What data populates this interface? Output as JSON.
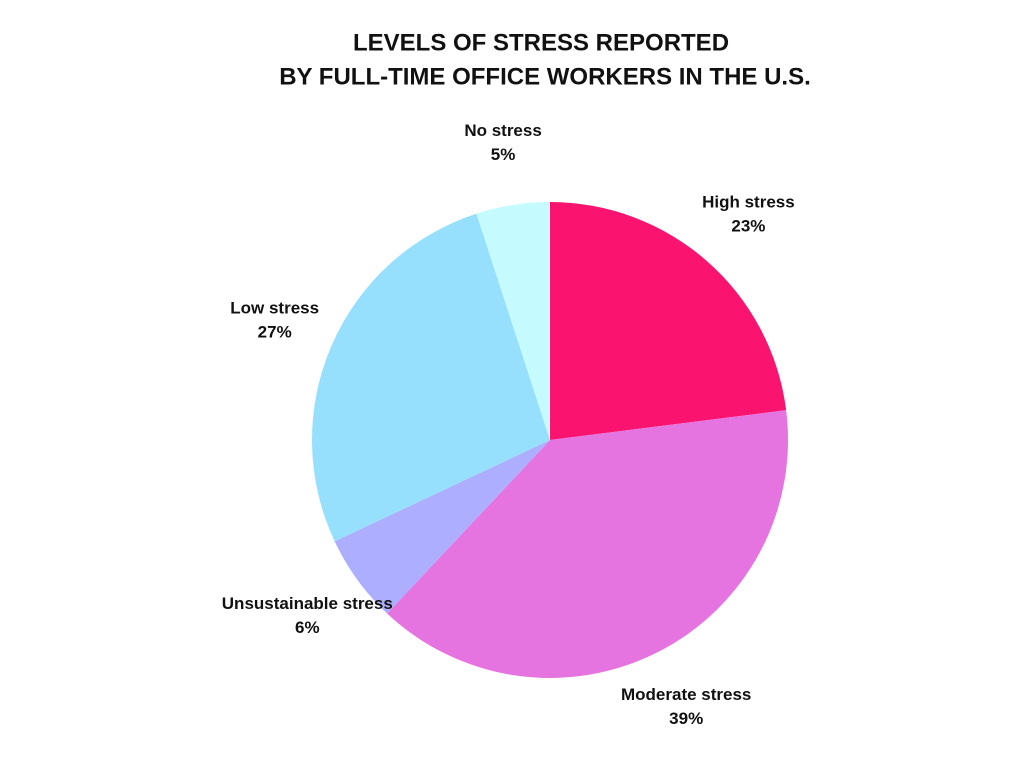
{
  "chart_data": {
    "type": "pie",
    "title": [
      "LEVELS OF STRESS REPORTED",
      "BY FULL-TIME OFFICE WORKERS IN THE U.S."
    ],
    "categories": [
      "High stress",
      "Moderate stress",
      "Unsustainable stress",
      "Low stress",
      "No stress"
    ],
    "values": [
      23,
      39,
      6,
      27,
      5
    ],
    "value_labels": [
      "23%",
      "39%",
      "6%",
      "27%",
      "5%"
    ],
    "colors": [
      "#fb1370",
      "#e674e0",
      "#adaefe",
      "#96e0fd",
      "#c5fbfe"
    ]
  }
}
